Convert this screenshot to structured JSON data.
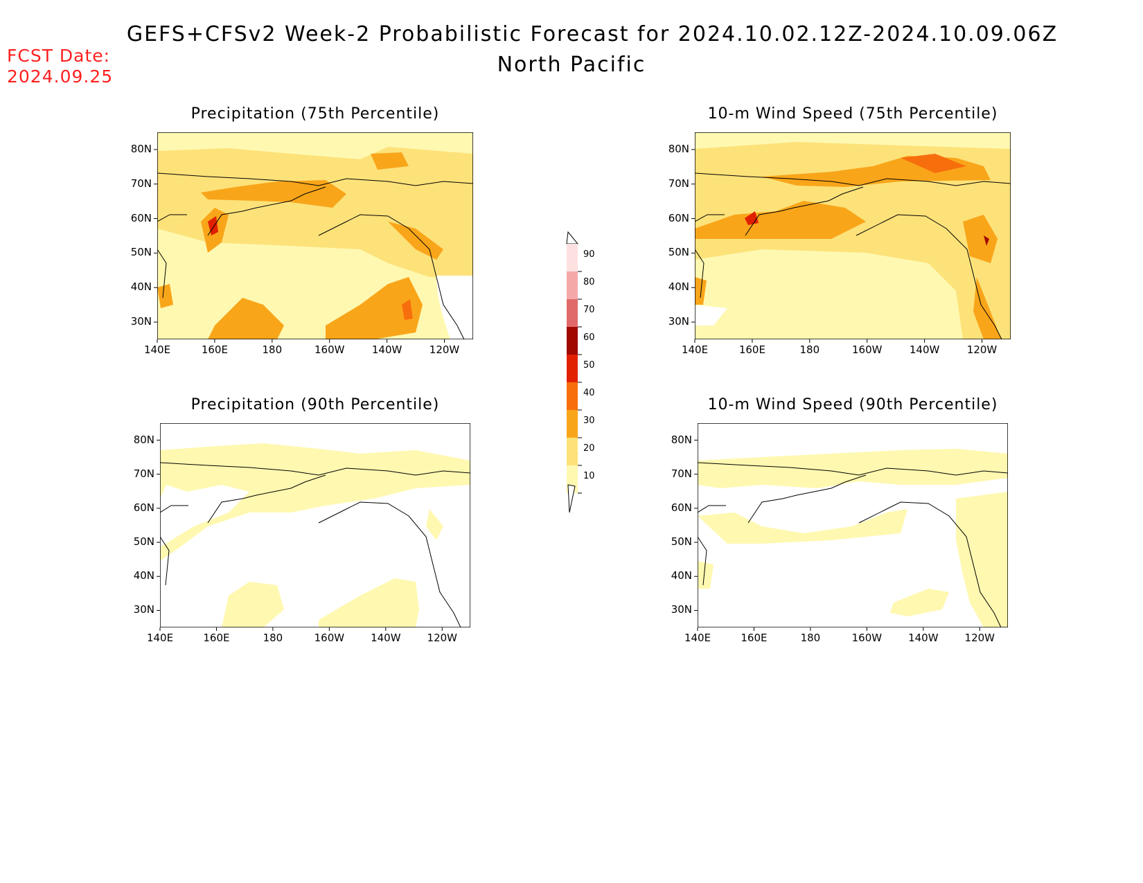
{
  "header": {
    "title": "GEFS+CFSv2 Week-2 Probabilistic Forecast for 2024.10.02.12Z-2024.10.09.06Z",
    "subtitle": "North Pacific",
    "fcst_label": "FCST Date:",
    "fcst_date": "2024.09.25"
  },
  "palette": {
    "p10": "#fff8b0",
    "p20": "#fde27a",
    "p30": "#f9a51a",
    "p40": "#f76e0c",
    "p50": "#e02000",
    "p60": "#a00800",
    "p70": "#e06a6a",
    "p80": "#f4a8a8",
    "p90": "#fde0e0",
    "land_coast": "#000000"
  },
  "panels": [
    {
      "id": "precip75",
      "title": "Precipitation (75th Percentile)"
    },
    {
      "id": "wind75",
      "title": "10-m Wind Speed (75th Percentile)"
    },
    {
      "id": "precip90",
      "title": "Precipitation (90th Percentile)"
    },
    {
      "id": "wind90",
      "title": "10-m Wind Speed (90th Percentile)"
    }
  ],
  "axes": {
    "x_ticks": [
      "140E",
      "160E",
      "180",
      "160W",
      "140W",
      "120W"
    ],
    "y_ticks": [
      "80N",
      "70N",
      "60N",
      "50N",
      "40N",
      "30N"
    ]
  },
  "colorbar": {
    "labels": [
      "90",
      "80",
      "70",
      "60",
      "50",
      "40",
      "30",
      "20",
      "10"
    ]
  }
}
